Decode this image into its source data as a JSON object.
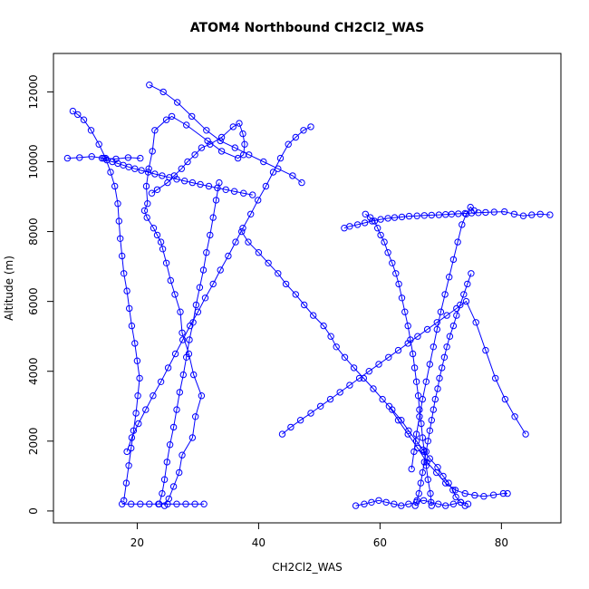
{
  "chart_data": {
    "type": "line",
    "title": "ATOM4 Northbound CH2Cl2_WAS",
    "xlabel": "CH2Cl2_WAS",
    "ylabel": "Altitude (m)",
    "xlim": [
      6.2,
      89.8
    ],
    "ylim": [
      -340,
      13100
    ],
    "x_ticks": [
      20,
      40,
      60,
      80
    ],
    "y_ticks": [
      0,
      2000,
      4000,
      6000,
      8000,
      10000,
      12000
    ],
    "grid": false,
    "series_color": "#0000ff",
    "marker": "open-circle",
    "series": [
      {
        "x": [
          24.5,
          25.2,
          26.0,
          26.9,
          27.4,
          29.1,
          29.6,
          30.6,
          29.3,
          28.5,
          27.4,
          27.1,
          26.2,
          25.5,
          24.8,
          24.2,
          23.9,
          23.3,
          22.7,
          21.6,
          21.2,
          21.7,
          21.5,
          21.9,
          22.5,
          22.9,
          24.8,
          25.7,
          28.1,
          31.6,
          33.9,
          36.6,
          37.5,
          37.7,
          37.4,
          36.8,
          35.8,
          33.9,
          32.0,
          30.6,
          29.5,
          28.3,
          27.3,
          26.1,
          25.0,
          23.3,
          22.4
        ],
        "y": [
          150,
          350,
          700,
          1100,
          1600,
          2100,
          2700,
          3300,
          3900,
          4500,
          5100,
          5700,
          6200,
          6600,
          7100,
          7500,
          7700,
          7900,
          8100,
          8400,
          8600,
          8800,
          9300,
          9800,
          10300,
          10900,
          11200,
          11300,
          11050,
          10600,
          10300,
          10100,
          10200,
          10500,
          10800,
          11100,
          11000,
          10700,
          10500,
          10400,
          10200,
          10000,
          9800,
          9600,
          9400,
          9200,
          9100
        ]
      },
      {
        "x": [
          37.2,
          38.3,
          40.0,
          41.6,
          43.2,
          44.5,
          46.1,
          47.5,
          49.0,
          50.7,
          51.9,
          52.8,
          54.2,
          55.7,
          57.3,
          58.9,
          60.4,
          62.0,
          63.5,
          64.7,
          66.0,
          67.1,
          68.2,
          69.5,
          70.4,
          71.3,
          72.0,
          72.5,
          73.3,
          74.0
        ],
        "y": [
          8000,
          7700,
          7400,
          7100,
          6800,
          6500,
          6200,
          5900,
          5600,
          5300,
          5000,
          4700,
          4400,
          4100,
          3800,
          3500,
          3200,
          2900,
          2600,
          2300,
          2000,
          1750,
          1500,
          1250,
          1000,
          800,
          600,
          400,
          250,
          150
        ]
      },
      {
        "x": [
          68.5,
          68.3,
          67.9,
          67.6,
          67.3,
          67.0,
          66.8,
          66.5,
          66.3,
          66.0,
          65.7,
          65.4,
          65.0,
          64.6,
          64.1,
          63.6,
          63.1,
          62.6,
          62.0,
          61.3,
          60.7,
          60.1,
          59.6,
          59.1,
          58.4,
          57.6
        ],
        "y": [
          150,
          500,
          900,
          1300,
          1700,
          2100,
          2500,
          2900,
          3300,
          3700,
          4100,
          4500,
          4900,
          5300,
          5700,
          6100,
          6500,
          6800,
          7100,
          7400,
          7700,
          7900,
          8100,
          8300,
          8400,
          8500
        ]
      },
      {
        "x": [
          17.8,
          18.2,
          18.6,
          19.0,
          19.4,
          19.8,
          20.1,
          20.4,
          20.0,
          19.6,
          19.1,
          18.7,
          18.3,
          17.8,
          17.5,
          17.2,
          17.0,
          16.8,
          16.3,
          15.6,
          14.8,
          13.7,
          12.4,
          11.2,
          10.2,
          9.4
        ],
        "y": [
          300,
          800,
          1300,
          1800,
          2300,
          2800,
          3300,
          3800,
          4300,
          4800,
          5300,
          5800,
          6300,
          6800,
          7300,
          7800,
          8300,
          8800,
          9300,
          9700,
          10100,
          10500,
          10900,
          11200,
          11350,
          11450
        ]
      },
      {
        "x": [
          54.1,
          55.0,
          56.3,
          57.5,
          58.7,
          60.1,
          61.3,
          62.4,
          63.6,
          64.8,
          66.1,
          67.3,
          68.5,
          69.7,
          70.8,
          71.8,
          72.9,
          74.0,
          75.1,
          76.2,
          77.4,
          78.8,
          80.5,
          82.1,
          83.6,
          85.0,
          86.4,
          88.0
        ],
        "y": [
          8100,
          8150,
          8200,
          8250,
          8300,
          8350,
          8380,
          8400,
          8420,
          8440,
          8450,
          8460,
          8470,
          8480,
          8490,
          8500,
          8510,
          8520,
          8530,
          8540,
          8550,
          8560,
          8570,
          8500,
          8450,
          8480,
          8500,
          8480
        ]
      },
      {
        "x": [
          75.0,
          74.4,
          73.8,
          73.2,
          72.6,
          72.1,
          71.5,
          71.0,
          70.6,
          70.2,
          69.8,
          69.5,
          69.1,
          68.8,
          68.5,
          68.2,
          67.9,
          67.6,
          67.3,
          67.0,
          66.7,
          66.4,
          66.1,
          65.8
        ],
        "y": [
          6800,
          6500,
          6200,
          5900,
          5600,
          5300,
          5000,
          4700,
          4400,
          4100,
          3800,
          3500,
          3200,
          2900,
          2600,
          2300,
          2000,
          1700,
          1400,
          1100,
          800,
          500,
          300,
          150
        ]
      },
      {
        "x": [
          33.5,
          33.0,
          32.5,
          32.0,
          31.4,
          30.9,
          30.3,
          29.7,
          29.2,
          28.6,
          28.1,
          27.6,
          27.0,
          26.5,
          26.0,
          25.4,
          24.9,
          24.5,
          24.1,
          23.6
        ],
        "y": [
          9400,
          8900,
          8400,
          7900,
          7400,
          6900,
          6400,
          5900,
          5400,
          4900,
          4400,
          3900,
          3400,
          2900,
          2400,
          1900,
          1400,
          900,
          500,
          200
        ]
      },
      {
        "x": [
          43.9,
          45.3,
          46.9,
          48.6,
          50.2,
          51.8,
          53.4,
          55.0,
          56.6,
          58.2,
          59.8,
          61.4,
          63.0,
          64.6,
          66.2,
          67.8,
          69.4,
          71.0,
          72.6,
          74.2,
          75.8,
          77.4,
          79.0,
          80.6,
          82.2,
          84.0
        ],
        "y": [
          2200,
          2400,
          2600,
          2800,
          3000,
          3200,
          3400,
          3600,
          3800,
          4000,
          4200,
          4400,
          4600,
          4800,
          5000,
          5200,
          5400,
          5600,
          5800,
          6000,
          5400,
          4600,
          3800,
          3200,
          2700,
          2200
        ]
      },
      {
        "x": [
          18.3,
          19.1,
          20.2,
          21.4,
          22.6,
          23.9,
          25.1,
          26.3,
          27.5,
          28.7,
          30.0,
          31.2,
          32.5,
          33.7,
          35.0,
          36.2,
          37.4,
          38.7,
          39.9,
          41.2,
          42.4,
          43.6,
          44.9,
          46.1,
          47.4,
          48.6
        ],
        "y": [
          1700,
          2100,
          2500,
          2900,
          3300,
          3700,
          4100,
          4500,
          4900,
          5300,
          5700,
          6100,
          6500,
          6900,
          7300,
          7700,
          8100,
          8500,
          8900,
          9300,
          9700,
          10100,
          10500,
          10700,
          10900,
          11000
        ]
      },
      {
        "x": [
          14.2,
          15.0,
          15.9,
          16.8,
          17.7,
          18.6,
          19.6,
          20.7,
          21.8,
          22.9,
          24.1,
          25.3,
          26.5,
          27.8,
          29.1,
          30.4,
          31.8,
          33.2,
          34.6,
          36.0,
          37.5,
          39.0
        ],
        "y": [
          10100,
          10050,
          10000,
          9950,
          9900,
          9850,
          9800,
          9750,
          9700,
          9650,
          9600,
          9550,
          9500,
          9450,
          9400,
          9350,
          9300,
          9250,
          9200,
          9150,
          9100,
          9050
        ]
      },
      {
        "x": [
          65.2,
          65.6,
          66.0,
          66.5,
          67.0,
          67.6,
          68.2,
          68.8,
          69.4,
          70.0,
          70.7,
          71.4,
          72.1,
          72.8,
          73.5,
          74.2,
          74.9,
          75.5
        ],
        "y": [
          1200,
          1700,
          2200,
          2700,
          3200,
          3700,
          4200,
          4700,
          5200,
          5700,
          6200,
          6700,
          7200,
          7700,
          8200,
          8500,
          8700,
          8600
        ]
      },
      {
        "x": [
          56.0,
          57.4,
          58.6,
          59.8,
          61.0,
          62.3,
          63.5,
          64.7,
          66.0,
          67.2,
          68.4,
          69.6,
          70.8,
          72.1,
          73.3,
          74.5
        ],
        "y": [
          150,
          200,
          250,
          300,
          250,
          200,
          150,
          200,
          250,
          300,
          250,
          200,
          150,
          200,
          250,
          200
        ]
      },
      {
        "x": [
          17.5,
          19.0,
          20.5,
          22.0,
          23.5,
          25.0,
          26.5,
          28.0,
          29.5,
          31.0
        ],
        "y": [
          200,
          200,
          200,
          200,
          200,
          200,
          200,
          200,
          200,
          200
        ]
      },
      {
        "x": [
          8.5,
          10.5,
          12.5,
          14.5,
          16.5,
          18.5,
          20.5
        ],
        "y": [
          10100,
          10120,
          10150,
          10100,
          10080,
          10120,
          10100
        ]
      },
      {
        "x": [
          22.0,
          24.3,
          26.6,
          29.0,
          31.4,
          33.7,
          36.1,
          38.4,
          40.8,
          43.2,
          45.6,
          47.1
        ],
        "y": [
          12200,
          12000,
          11700,
          11300,
          10900,
          10600,
          10400,
          10200,
          10000,
          9800,
          9600,
          9400
        ]
      },
      {
        "x": [
          61.5,
          63.0,
          64.6,
          66.2,
          67.7,
          69.3,
          70.8,
          72.4,
          74.0,
          75.6,
          77.1,
          78.7,
          80.3,
          81.0
        ],
        "y": [
          3000,
          2600,
          2200,
          1800,
          1400,
          1100,
          800,
          600,
          500,
          450,
          420,
          460,
          500,
          500
        ]
      }
    ]
  }
}
